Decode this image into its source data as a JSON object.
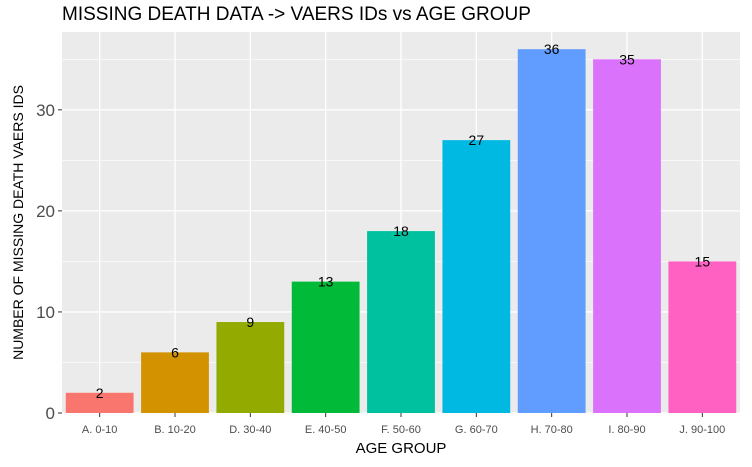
{
  "chart_data": {
    "type": "bar",
    "title": "MISSING DEATH DATA -> VAERS IDs vs AGE GROUP",
    "xlabel": "AGE GROUP",
    "ylabel": "NUMBER OF MISSING DEATH VAERS IDS",
    "categories": [
      "A. 0-10",
      "B. 10-20",
      "D. 30-40",
      "E. 40-50",
      "F. 50-60",
      "G. 60-70",
      "H. 70-80",
      "I. 80-90",
      "J. 90-100"
    ],
    "values": [
      2,
      6,
      9,
      13,
      18,
      27,
      36,
      35,
      15
    ],
    "data_labels": [
      "2",
      "6",
      "9",
      "13",
      "18",
      "27",
      "36",
      "35",
      "15"
    ],
    "colors": [
      "#F8766D",
      "#D39200",
      "#93AA00",
      "#00BA38",
      "#00C19F",
      "#00B9E3",
      "#619CFF",
      "#DB72FB",
      "#FF61C3"
    ],
    "ylim": [
      0,
      37.7
    ],
    "yticks": [
      0,
      10,
      20,
      30
    ],
    "ytick_labels": [
      "0",
      "10",
      "20",
      "30"
    ],
    "grid": true,
    "legend": "none",
    "panel_background": "#EBEBEB",
    "grid_color": "#FFFFFF"
  }
}
